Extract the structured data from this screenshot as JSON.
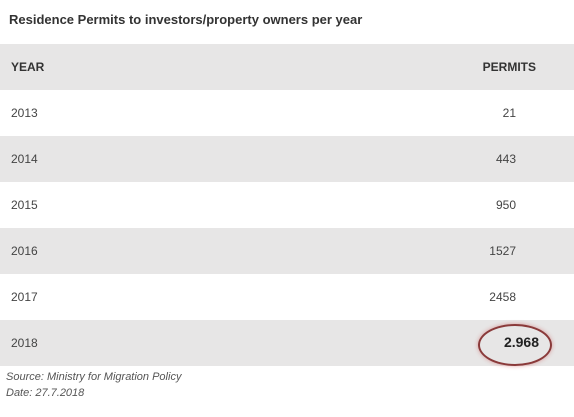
{
  "title": "Residence Permits to investors/property owners per year",
  "table": {
    "headers": {
      "year": "YEAR",
      "permits": "PERMITS"
    },
    "rows": [
      {
        "year": "2013",
        "permits": "21"
      },
      {
        "year": "2014",
        "permits": "443"
      },
      {
        "year": "2015",
        "permits": "950"
      },
      {
        "year": "2016",
        "permits": "1527"
      },
      {
        "year": "2017",
        "permits": "2458"
      },
      {
        "year": "2018",
        "permits": "2.968"
      }
    ]
  },
  "footer": {
    "source": "Source: Ministry for Migration Policy",
    "date": "Date: 27.7.2018"
  },
  "colors": {
    "header_bg": "#e7e6e6",
    "stripe_bg": "#e7e6e6",
    "highlight_circle": "#8a3a3a"
  }
}
